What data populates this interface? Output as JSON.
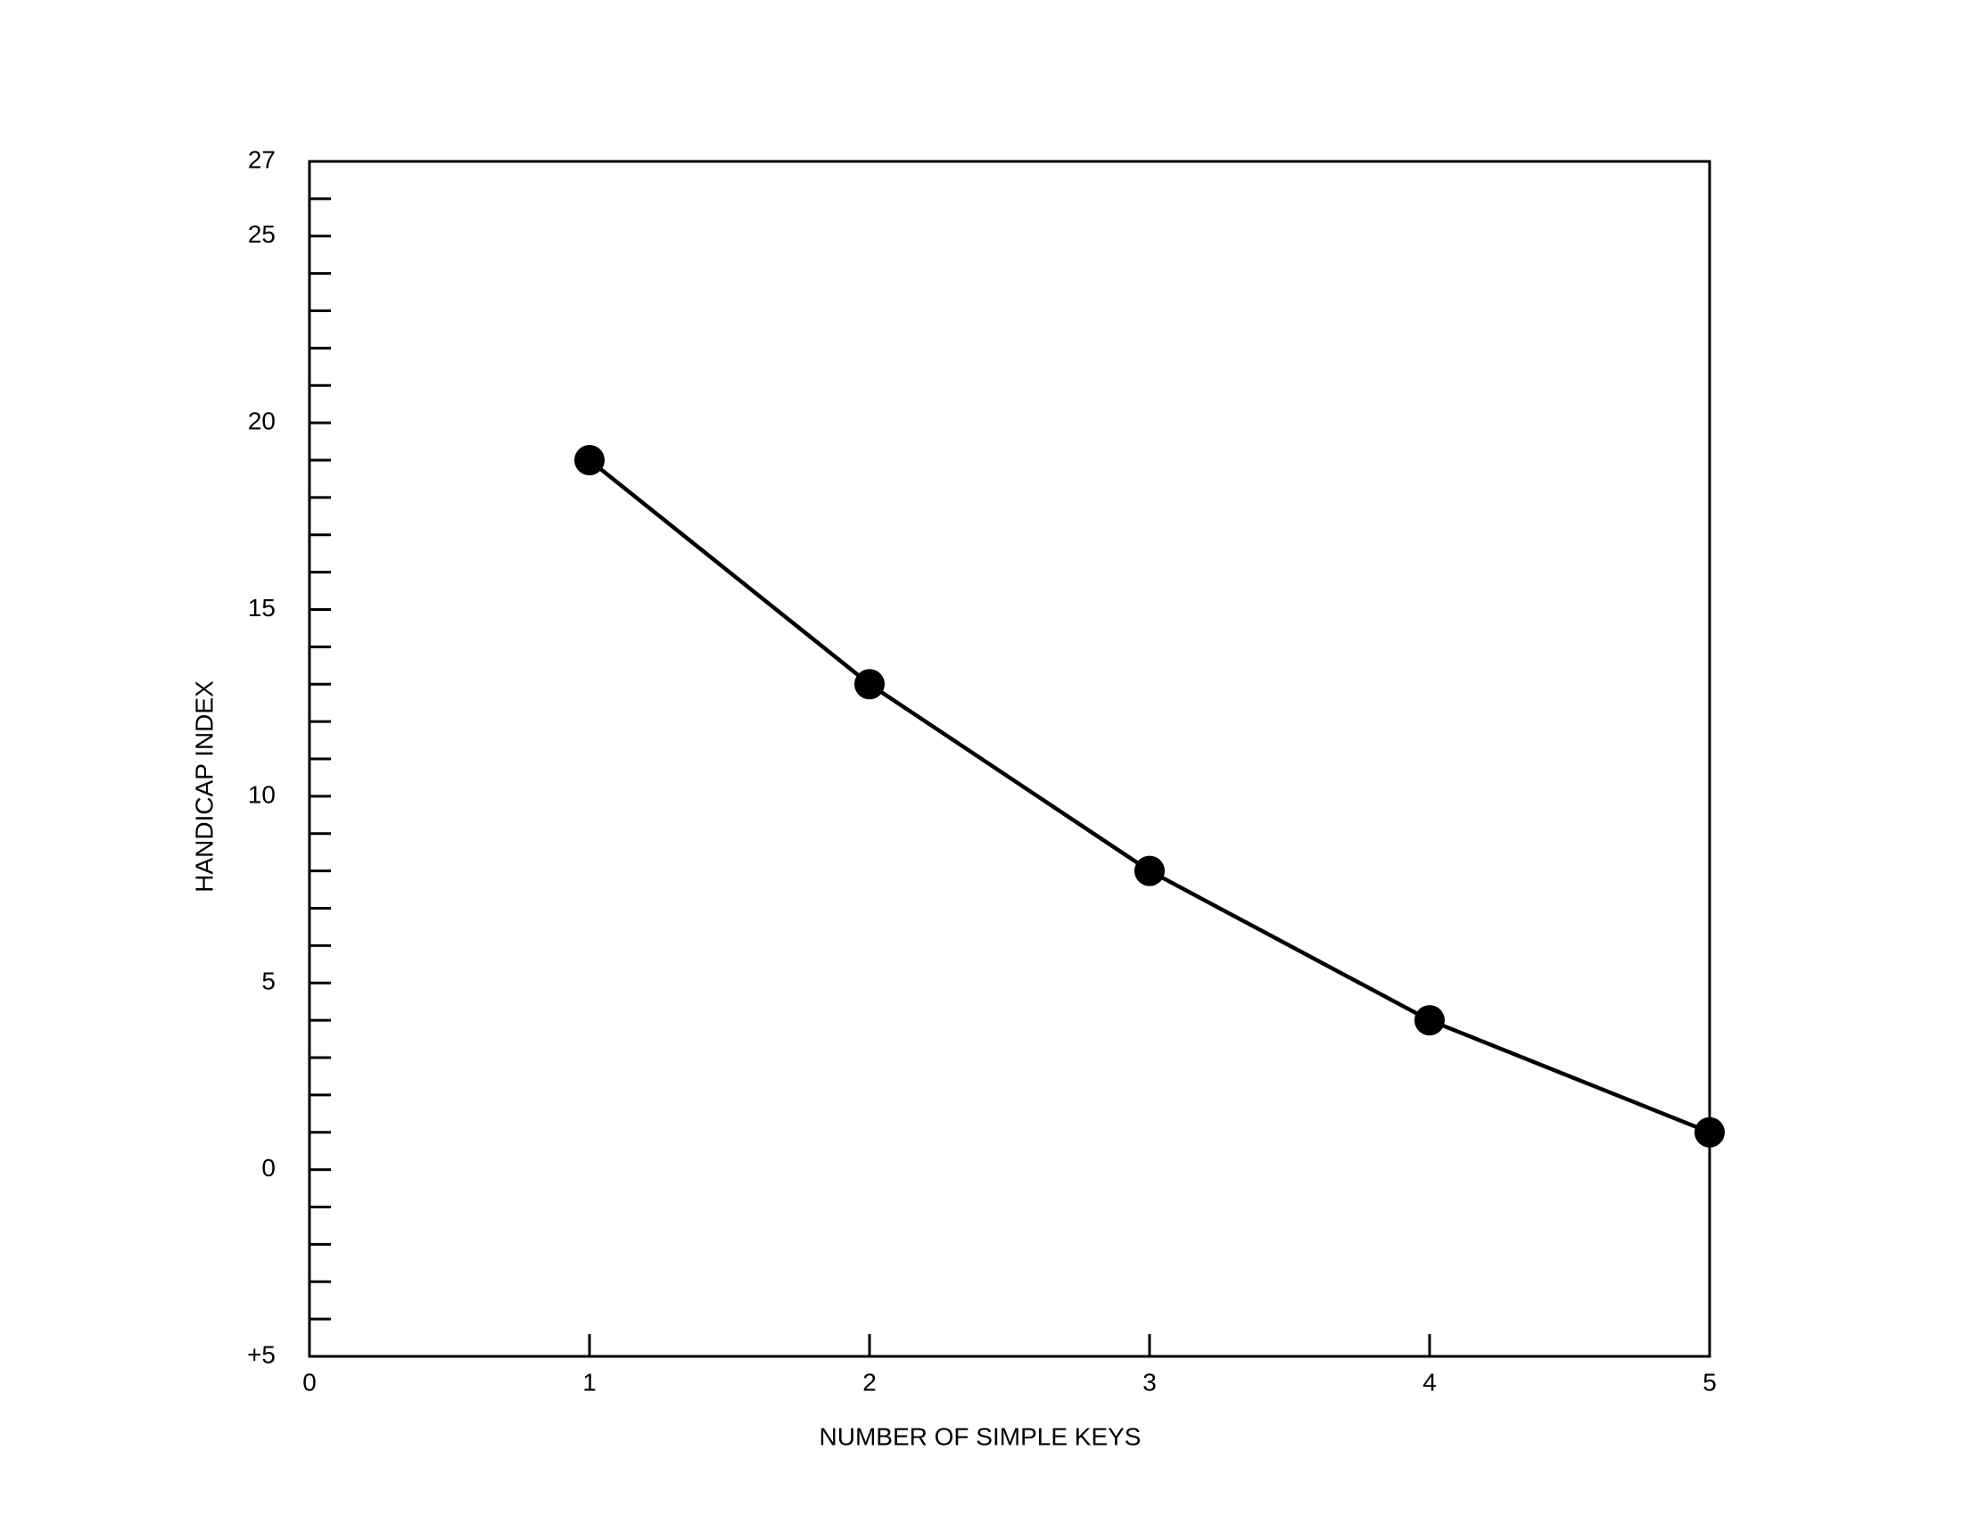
{
  "chart_data": {
    "type": "line",
    "x_label": "NUMBER OF SIMPLE KEYS",
    "y_label": "HANDICAP INDEX",
    "x": [
      1,
      2,
      3,
      4,
      5
    ],
    "values": [
      19,
      13,
      8,
      4,
      1
    ],
    "color": "#000000",
    "markers": true,
    "xlim": [
      0,
      5
    ],
    "xticks": [
      0,
      1,
      2,
      3,
      4,
      5
    ],
    "ylim": [
      -5,
      27
    ],
    "yticks": [
      {
        "value": -5,
        "label": "+5"
      },
      0,
      5,
      10,
      15,
      20,
      25,
      27
    ],
    "yminorticks": [
      -4,
      -3,
      -2,
      -1,
      1,
      2,
      3,
      4,
      6,
      7,
      8,
      9,
      11,
      12,
      13,
      14,
      16,
      17,
      18,
      19,
      21,
      22,
      23,
      24,
      26
    ],
    "grid": false
  }
}
